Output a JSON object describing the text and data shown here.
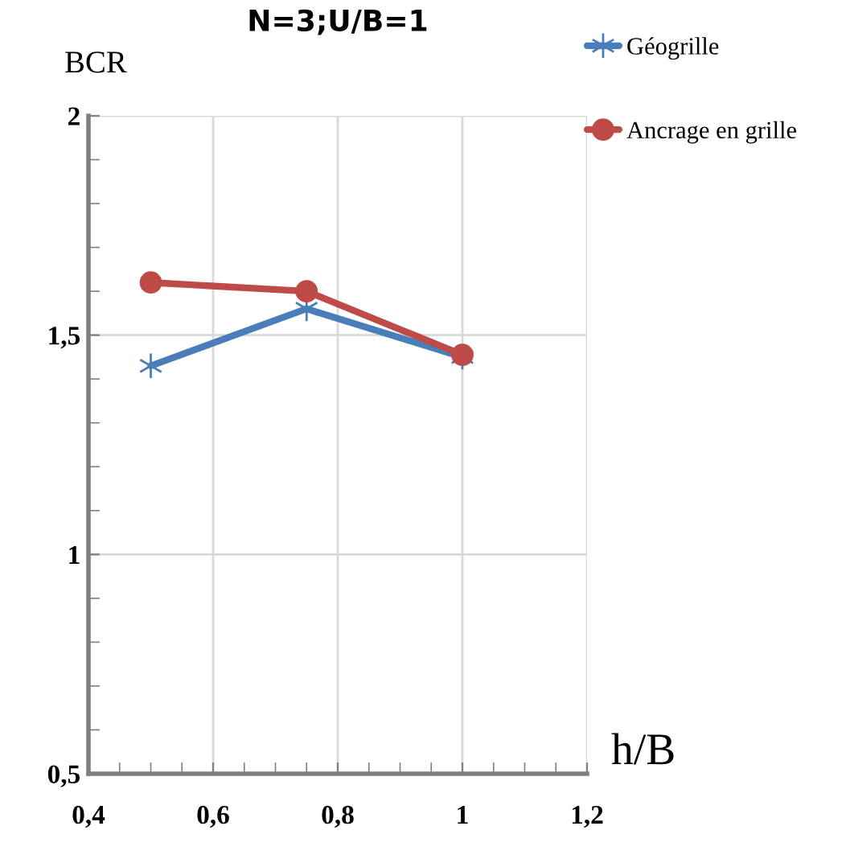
{
  "chart_data": {
    "type": "line",
    "title": "N=3;U/B=1",
    "xlabel": "h/B",
    "ylabel": "BCR",
    "x": [
      0.5,
      0.75,
      1.0
    ],
    "series": [
      {
        "name": "Géogrille",
        "color": "#4a7ebb",
        "marker": "cross",
        "values": [
          1.43,
          1.56,
          1.45
        ]
      },
      {
        "name": "Ancrage en grille",
        "color": "#be4b48",
        "marker": "circle",
        "values": [
          1.62,
          1.6,
          1.455
        ]
      }
    ],
    "xlim": [
      0.4,
      1.2
    ],
    "ylim": [
      0.5,
      2
    ],
    "xticks": [
      {
        "value": 0.4,
        "label": "0,4"
      },
      {
        "value": 0.6,
        "label": "0,6"
      },
      {
        "value": 0.8,
        "label": "0,8"
      },
      1,
      {
        "value": 1.2,
        "label": "1,2"
      }
    ],
    "yticks": [
      {
        "value": 0.5,
        "label": "0,5"
      },
      1,
      {
        "value": 1.5,
        "label": "1,5"
      },
      2
    ],
    "grid": true,
    "legend": "top right",
    "line_style": "solid"
  }
}
